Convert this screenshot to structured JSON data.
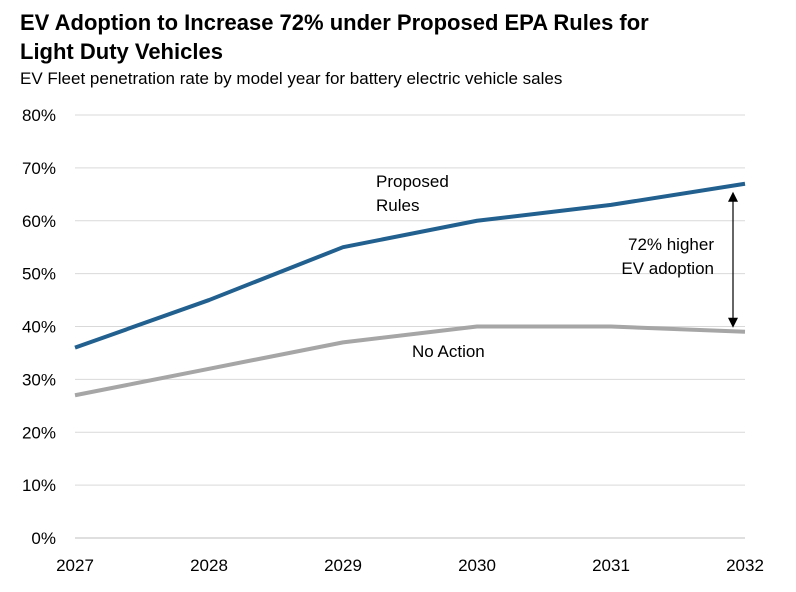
{
  "chart_data": {
    "type": "line",
    "title_lines": [
      "EV Adoption to Increase 72% under Proposed EPA Rules for",
      "Light Duty Vehicles"
    ],
    "subtitle": "EV Fleet penetration rate by model year for battery electric vehicle sales",
    "xlabel": "",
    "ylabel": "",
    "x": [
      "2027",
      "2028",
      "2029",
      "2030",
      "2031",
      "2032"
    ],
    "yticks": [
      "0%",
      "10%",
      "20%",
      "30%",
      "40%",
      "50%",
      "60%",
      "70%",
      "80%"
    ],
    "ylim": [
      0,
      80
    ],
    "grid": true,
    "legend": "none",
    "series": [
      {
        "name": "Proposed Rules",
        "label_lines": [
          "Proposed",
          "Rules"
        ],
        "color": "#22608f",
        "values": [
          36,
          45,
          55,
          60,
          63,
          67
        ]
      },
      {
        "name": "No Action",
        "label_lines": [
          "No Action"
        ],
        "color": "#a6a6a6",
        "values": [
          27,
          32,
          37,
          40,
          40,
          39
        ]
      }
    ],
    "annotation": {
      "text_lines": [
        "72% higher",
        "EV adoption"
      ],
      "at_x": "2032",
      "from_value": 39,
      "to_value": 67
    }
  }
}
